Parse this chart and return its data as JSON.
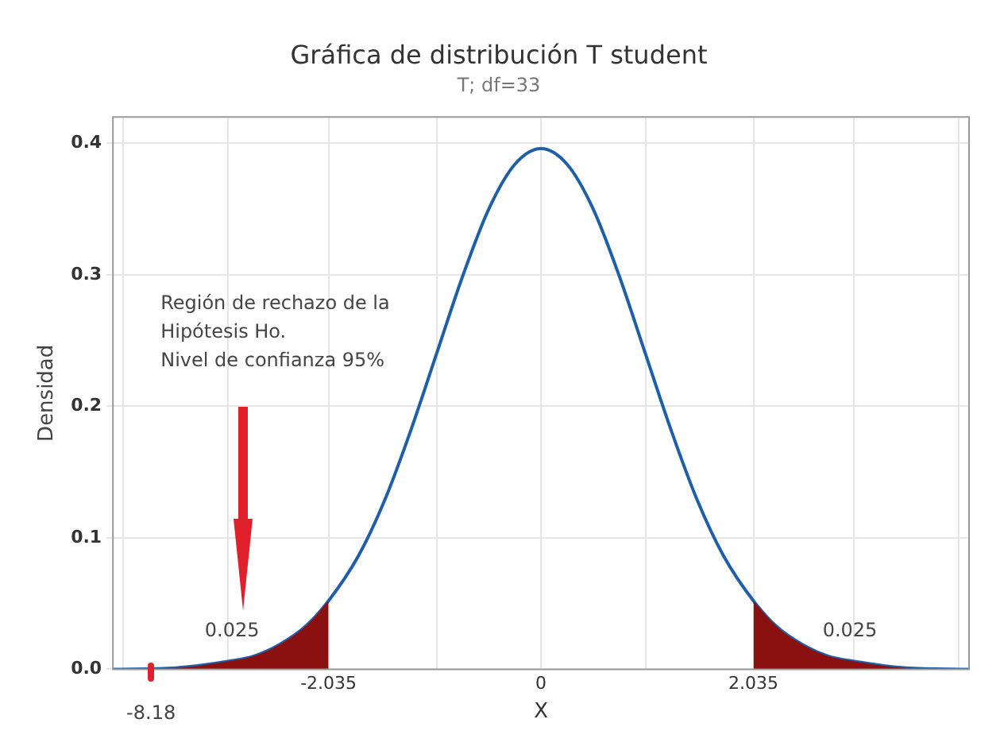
{
  "chart_data": {
    "type": "line",
    "title": "Gráfica de distribución T student",
    "subtitle": "T; df=33",
    "xlabel": "X",
    "ylabel": "Densidad",
    "xlim": [
      -4.1,
      4.1
    ],
    "ylim": [
      0,
      0.42
    ],
    "xticks": [
      {
        "value": -4,
        "label": null
      },
      {
        "value": -3,
        "label": null
      },
      {
        "value": -2.035,
        "label": "-2.035"
      },
      {
        "value": -1,
        "label": null
      },
      0,
      {
        "value": 1,
        "label": null
      },
      {
        "value": 2.035,
        "label": "2.035"
      },
      {
        "value": 3,
        "label": null
      },
      {
        "value": 4,
        "label": null
      }
    ],
    "yticks": [
      {
        "value": 0,
        "label": "0.0"
      },
      {
        "value": 0.1,
        "label": "0.1"
      },
      {
        "value": 0.2,
        "label": "0.2"
      },
      {
        "value": 0.3,
        "label": "0.3"
      },
      {
        "value": 0.4,
        "label": "0.4"
      }
    ],
    "grid": true,
    "marker": "none",
    "line_style": "solid",
    "series": [
      {
        "type": "area",
        "color": "#8b1111",
        "x": [
          -4.1,
          -3.5,
          -3.0,
          -2.75,
          -2.5,
          -2.25,
          -2.035
        ],
        "values": [
          0,
          0.001,
          0.006,
          0.01,
          0.019,
          0.033,
          0.052
        ]
      },
      {
        "type": "area",
        "color": "#8b1111",
        "x": [
          2.035,
          2.25,
          2.5,
          2.75,
          3.0,
          3.5,
          4.1
        ],
        "values": [
          0.052,
          0.033,
          0.019,
          0.01,
          0.006,
          0.001,
          0
        ]
      },
      {
        "color": "#1f5fa8",
        "x": [
          -4.1,
          -3.5,
          -3.0,
          -2.75,
          -2.5,
          -2.25,
          -2.035,
          -1.75,
          -1.5,
          -1.25,
          -1.0,
          -0.75,
          -0.5,
          -0.25,
          0,
          0.25,
          0.5,
          0.75,
          1.0,
          1.25,
          1.5,
          1.75,
          2.035,
          2.25,
          2.5,
          2.75,
          3.0,
          3.5,
          4.1
        ],
        "values": [
          0,
          0.001,
          0.006,
          0.01,
          0.019,
          0.033,
          0.052,
          0.086,
          0.128,
          0.181,
          0.24,
          0.299,
          0.35,
          0.384,
          0.396,
          0.384,
          0.35,
          0.299,
          0.24,
          0.181,
          0.128,
          0.086,
          0.052,
          0.033,
          0.019,
          0.01,
          0.006,
          0.001,
          0
        ]
      }
    ],
    "annotations": [
      "Región de rechazo de la\nHipótesis Ho.\nNivel de confianza 95%",
      "0.025",
      "0.025",
      "-8.18"
    ]
  }
}
